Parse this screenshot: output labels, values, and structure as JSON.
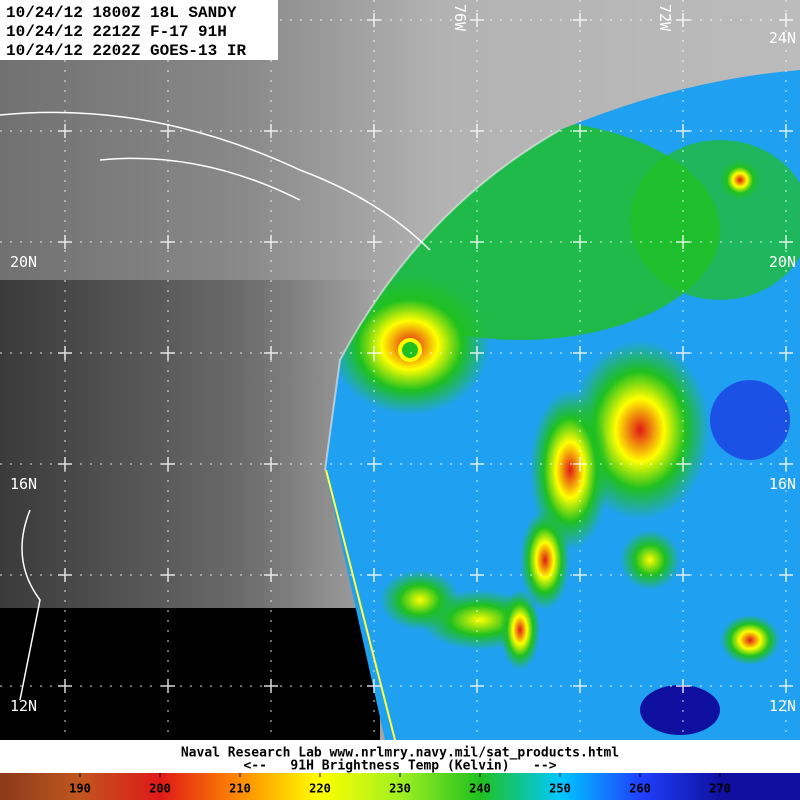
{
  "header": {
    "lines": [
      "10/24/12 1800Z 18L SANDY",
      "10/24/12 2212Z F-17 91H",
      "10/24/12 2202Z GOES-13 IR"
    ]
  },
  "lat_labels": {
    "left": [
      "20N",
      "16N",
      "12N"
    ],
    "right": [
      "24N",
      "20N",
      "16N",
      "12N"
    ]
  },
  "lon_labels": [
    "76W",
    "72W"
  ],
  "footer": {
    "credit": "Naval Research Lab  www.nrlmry.navy.mil/sat_products.html",
    "caption": "<--   91H Brightness Temp (Kelvin)   -->"
  },
  "colorbar": {
    "range": [
      180,
      280
    ],
    "ticks": [
      190,
      200,
      210,
      220,
      230,
      240,
      250,
      260,
      270
    ],
    "colors": [
      "#8b3a1a",
      "#c0561e",
      "#e01818",
      "#ff8c00",
      "#ffff00",
      "#a0f020",
      "#20c020",
      "#00c8ff",
      "#2040ff",
      "#1010a0"
    ]
  }
}
